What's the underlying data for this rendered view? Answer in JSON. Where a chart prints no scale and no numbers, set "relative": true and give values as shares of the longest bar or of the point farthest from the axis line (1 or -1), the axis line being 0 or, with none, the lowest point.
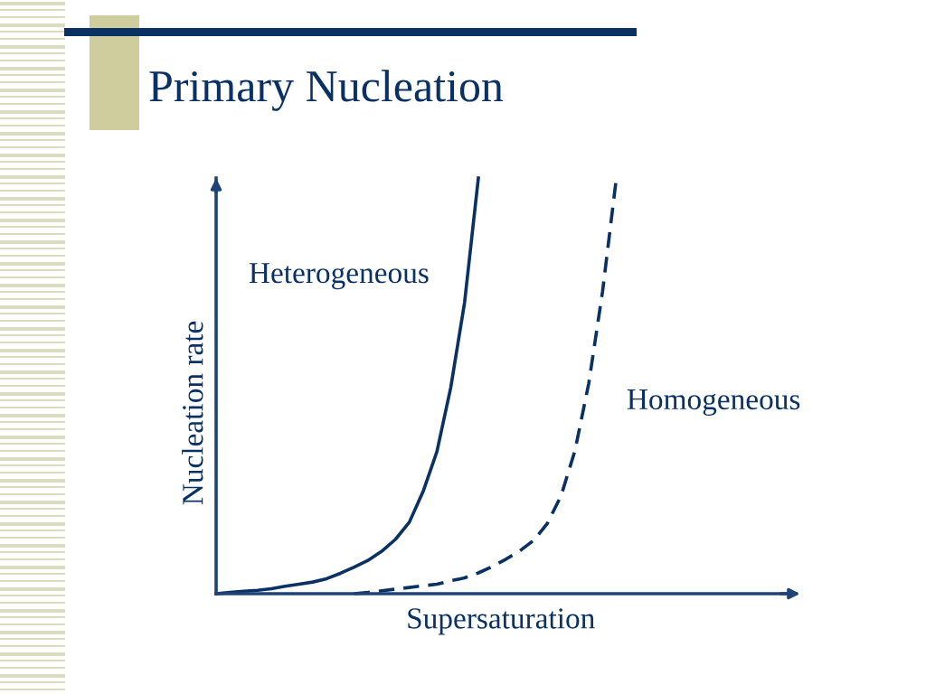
{
  "chart_data": {
    "type": "line",
    "title": "Primary Nucleation",
    "xlabel": "Supersaturation",
    "ylabel": "Nucleation rate",
    "relative": true,
    "categories": [
      null,
      null,
      null,
      null,
      null,
      null,
      null,
      null,
      null,
      null,
      null,
      null,
      null,
      null,
      null,
      null,
      null,
      null,
      null,
      null,
      null,
      null,
      null,
      null,
      null,
      null,
      null,
      null,
      null,
      null,
      null,
      null,
      null,
      null,
      null,
      null,
      null,
      null,
      null,
      null,
      null,
      null,
      null
    ],
    "series": [
      {
        "name": "Heterogeneous",
        "color": "#0a3164",
        "line_style": "solid",
        "values": [
          0,
          0.003,
          0.006,
          0.008,
          0.012,
          0.018,
          0.023,
          0.028,
          0.036,
          0.049,
          0.064,
          0.08,
          0.102,
          0.131,
          0.172,
          0.246,
          0.342,
          0.496,
          0.7,
          1.0,
          null,
          null,
          null,
          null,
          null,
          null,
          null,
          null,
          null,
          null,
          null,
          null,
          null,
          null,
          null,
          null,
          null,
          null,
          null,
          null,
          null,
          null,
          null
        ]
      },
      {
        "name": "Homogeneous",
        "color": "#0a3164",
        "line_style": "dashed",
        "values": [
          null,
          null,
          null,
          null,
          null,
          null,
          null,
          null,
          null,
          null,
          0,
          0.003,
          0.007,
          0.011,
          0.015,
          0.019,
          0.023,
          0.031,
          0.038,
          0.05,
          0.065,
          0.083,
          0.103,
          0.128,
          0.169,
          0.236,
          0.344,
          0.506,
          0.727,
          1.0,
          null,
          null,
          null,
          null,
          null,
          null,
          null,
          null,
          null,
          null,
          null,
          null,
          null
        ]
      }
    ]
  }
}
